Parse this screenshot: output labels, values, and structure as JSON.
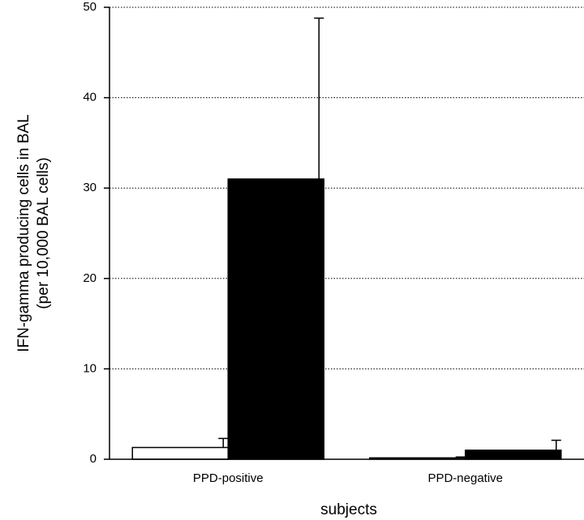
{
  "chart_data": {
    "type": "bar",
    "y_label": [
      "IFN-gamma producing cells in BAL",
      "(per 10,000 BAL cells)"
    ],
    "x_label": "subjects",
    "categories": [
      "PPD-positive",
      "PPD-negative"
    ],
    "series": [
      {
        "color": "#ffffff",
        "values": [
          1.3,
          0.15
        ],
        "errors": [
          1.0,
          0.1
        ]
      },
      {
        "color": "#000000",
        "values": [
          31,
          1.0
        ],
        "errors": [
          17.8,
          1.1
        ]
      }
    ],
    "ylim": [
      0,
      50
    ],
    "yticks": [
      0,
      10,
      20,
      30,
      40,
      50
    ],
    "grid": true
  }
}
